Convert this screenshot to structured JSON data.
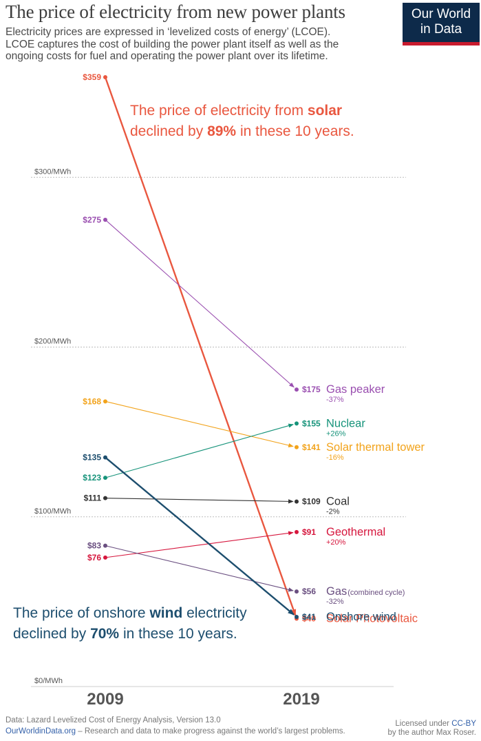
{
  "header": {
    "title": "The price of electricity from new power plants",
    "subtitle_lines": [
      "Electricity prices are expressed in ‘levelized costs of energy’ (LCOE).",
      "LCOE captures the cost of building the power plant itself as well as the",
      "ongoing costs for fuel and operating the power plant over its lifetime."
    ],
    "logo_line1": "Our World",
    "logo_line2": "in Data"
  },
  "annotations": {
    "solar": {
      "line1_pre": "The price of electricity from ",
      "line1_bold": "solar",
      "line2_pre": "declined by ",
      "line2_bold": "89%",
      "line2_post": " in these 10 years."
    },
    "wind": {
      "line1_pre": "The price of onshore ",
      "line1_bold": "wind",
      "line1_post": " electricity",
      "line2_pre": "declined by ",
      "line2_bold": "70%",
      "line2_post": " in these 10 years."
    }
  },
  "footer": {
    "source": "Data: Lazard Levelized Cost of Energy Analysis, Version 13.0",
    "site": "OurWorldinData.org",
    "tagline": " – Research and data to make progress against the world’s largest problems.",
    "license_line1_pre": "Licensed under ",
    "license_link": "CC-BY",
    "license_line2": "by the author Max Roser."
  },
  "chart_data": {
    "type": "line",
    "x": [
      "2009",
      "2019"
    ],
    "ylim": [
      0,
      359
    ],
    "y_ticks": [
      {
        "value": 0,
        "label": "$0/MWh"
      },
      {
        "value": 100,
        "label": "$100/MWh"
      },
      {
        "value": 200,
        "label": "$200/MWh"
      },
      {
        "value": 300,
        "label": "$300/MWh"
      }
    ],
    "grid": true,
    "series": [
      {
        "name": "Solar Photovoltaic",
        "values": [
          359,
          40
        ],
        "start_label": "$359",
        "end_label": "$40",
        "change": "",
        "color": "#e9573f"
      },
      {
        "name": "Gas peaker",
        "values": [
          275,
          175
        ],
        "start_label": "$275",
        "end_label": "$175",
        "change": "-37%",
        "color": "#9a4fb0"
      },
      {
        "name": "Solar thermal tower",
        "values": [
          168,
          141
        ],
        "start_label": "$168",
        "end_label": "$141",
        "change": "-16%",
        "color": "#f2a31b"
      },
      {
        "name": "Nuclear",
        "values": [
          123,
          155
        ],
        "start_label": "$123",
        "end_label": "$155",
        "change": "+26%",
        "color": "#16937a"
      },
      {
        "name": "Coal",
        "values": [
          111,
          109
        ],
        "start_label": "$111",
        "end_label": "$109",
        "change": "-2%",
        "color": "#333333"
      },
      {
        "name": "Geothermal",
        "values": [
          76,
          91
        ],
        "start_label": "$76",
        "end_label": "$91",
        "change": "+20%",
        "color": "#d6163d"
      },
      {
        "name": "Gas",
        "name_suffix": "(combined cycle)",
        "values": [
          83,
          56
        ],
        "start_label": "$83",
        "end_label": "$56",
        "change": "-32%",
        "color": "#6a4f80"
      },
      {
        "name": "Onshore wind",
        "values": [
          135,
          41
        ],
        "start_label": "$135",
        "end_label": "$41",
        "change": "",
        "color": "#1d4e6e"
      }
    ]
  }
}
